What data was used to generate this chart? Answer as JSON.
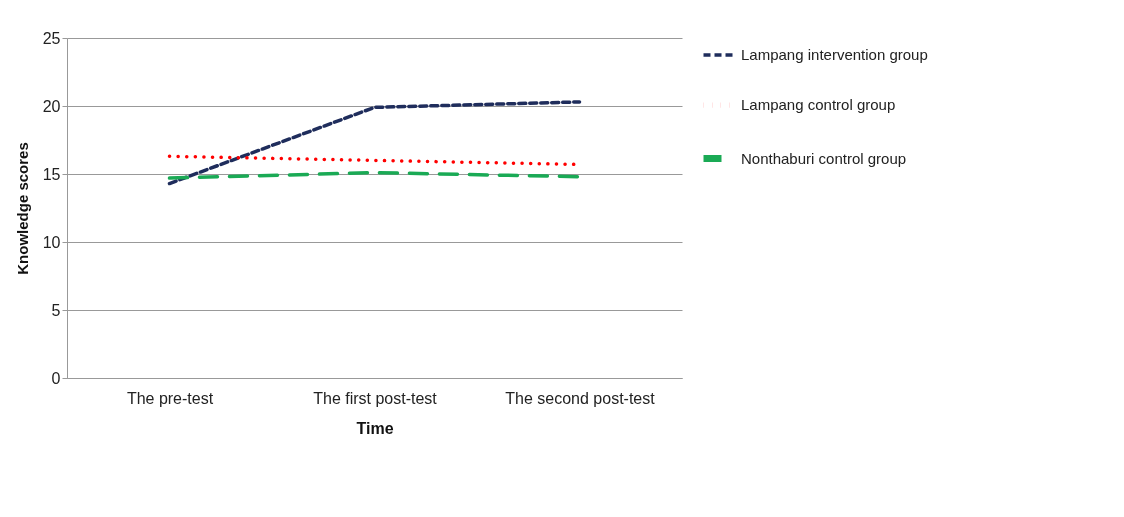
{
  "chart_data": {
    "type": "line",
    "xlabel": "Time",
    "ylabel": "Knowledge scores",
    "categories": [
      "The pre-test",
      "The first post-test",
      "The second post-test"
    ],
    "series": [
      {
        "name": "Lampang intervention group",
        "color": "#1f2d5c",
        "line_style": "dashed",
        "values": [
          14.3,
          19.9,
          20.3
        ]
      },
      {
        "name": "Lampang control  group",
        "color": "#ff0000",
        "line_style": "dotted",
        "values": [
          16.3,
          16.0,
          15.7
        ]
      },
      {
        "name": "Nonthaburi control  group",
        "color": "#1aaa55",
        "line_style": "longdash",
        "values": [
          14.7,
          15.1,
          14.8
        ]
      }
    ],
    "ylim": [
      0,
      25
    ],
    "yticks": [
      0,
      5,
      10,
      15,
      20,
      25
    ],
    "grid": "y",
    "legend": "right",
    "marker": "none"
  }
}
